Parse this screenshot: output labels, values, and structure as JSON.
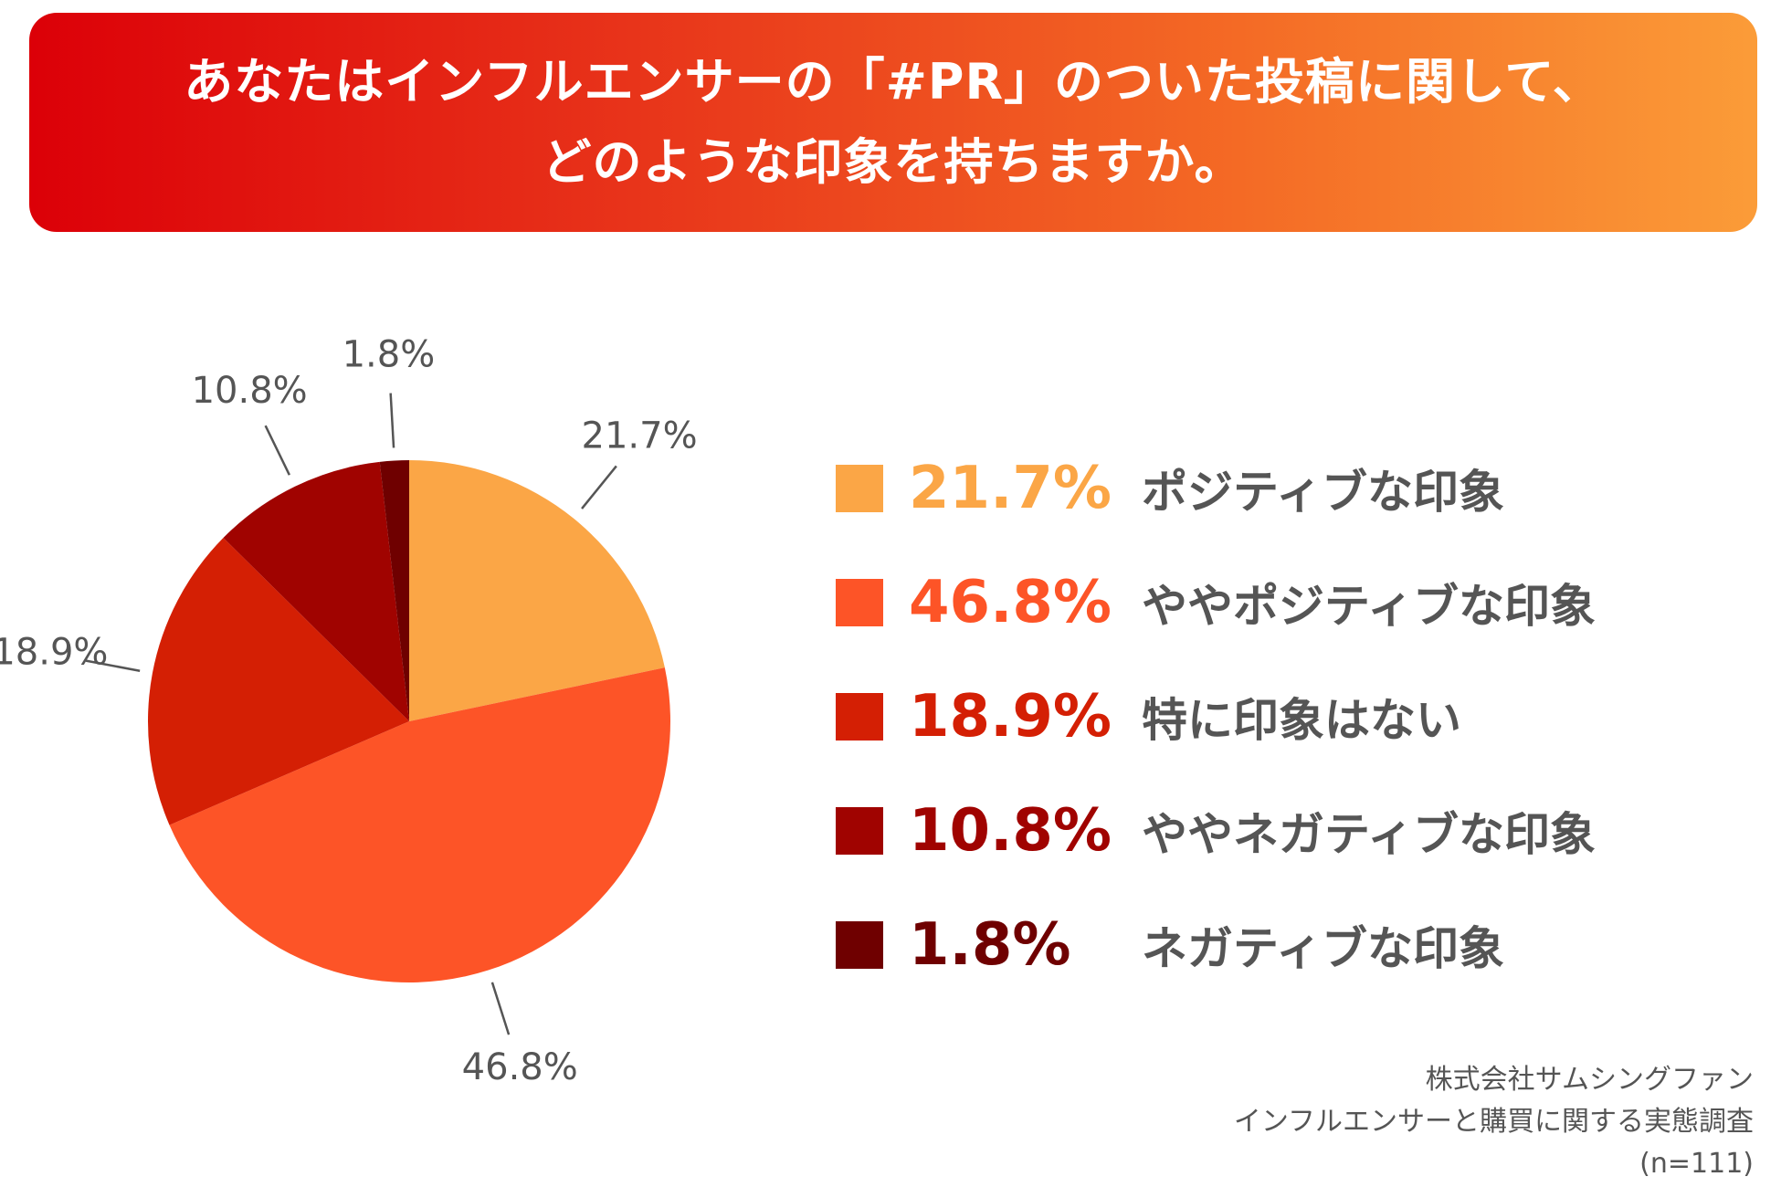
{
  "title": {
    "line1": "あなたはインフルエンサーの「#PR」のついた投稿に関して、",
    "line2": "どのような印象を持ちますか。"
  },
  "chart_data": {
    "type": "pie",
    "title": "あなたはインフルエンサーの「#PR」のついた投稿に関して、どのような印象を持ちますか。",
    "categories": [
      "ポジティブな印象",
      "ややポジティブな印象",
      "特に印象はない",
      "ややネガティブな印象",
      "ネガティブな印象"
    ],
    "values": [
      21.7,
      46.8,
      18.9,
      10.8,
      1.8
    ],
    "value_labels": [
      "21.7%",
      "46.8%",
      "18.9%",
      "10.8%",
      "1.8%"
    ],
    "colors": [
      "#fba646",
      "#fd5427",
      "#d41f04",
      "#a00300",
      "#6f0000"
    ],
    "legend_value_colors": [
      "#fba646",
      "#fd5427",
      "#d41f04",
      "#a00300",
      "#6f0000"
    ],
    "start": "12 o'clock",
    "direction": "clockwise",
    "legend_position": "right"
  },
  "legend": {
    "items": [
      {
        "value": "21.7%",
        "label": "ポジティブな印象"
      },
      {
        "value": "46.8%",
        "label": "ややポジティブな印象"
      },
      {
        "value": "18.9%",
        "label": "特に印象はない"
      },
      {
        "value": "10.8%",
        "label": "ややネガティブな印象"
      },
      {
        "value": "1.8%",
        "label": "ネガティブな印象"
      }
    ]
  },
  "source": {
    "line1": "株式会社サムシングファン",
    "line2": "インフルエンサーと購買に関する実態調査",
    "line3": "(n=111)"
  }
}
